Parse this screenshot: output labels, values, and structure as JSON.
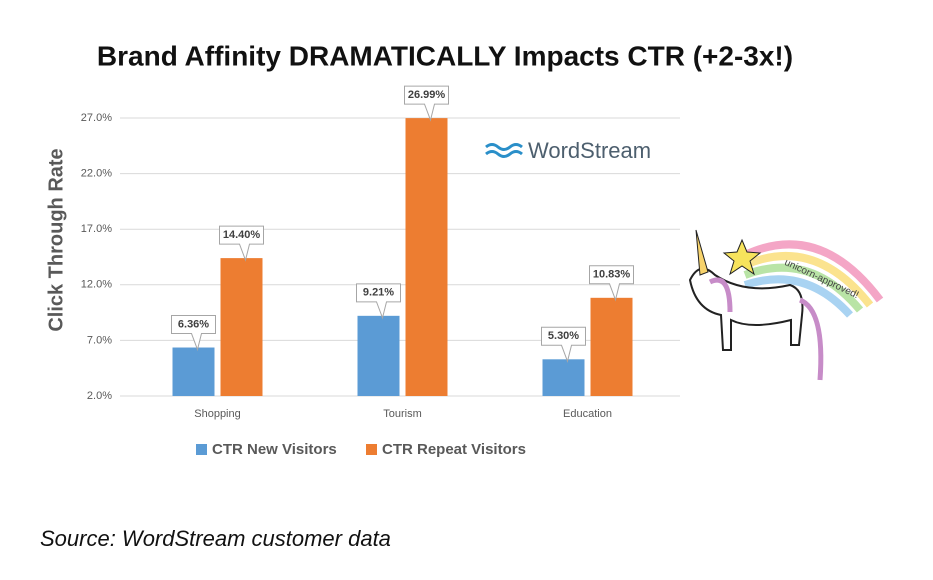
{
  "chart_data": {
    "type": "bar",
    "title": "Brand Affinity DRAMATICALLY Impacts CTR (+2-3x!)",
    "y_label": "Click Through Rate",
    "categories": [
      "Shopping",
      "Tourism",
      "Education"
    ],
    "series": [
      {
        "name": "CTR New Visitors",
        "color": "#5b9bd5",
        "values": [
          6.36,
          9.21,
          5.3
        ],
        "value_labels": [
          "6.36%",
          "9.21%",
          "5.30%"
        ]
      },
      {
        "name": "CTR Repeat Visitors",
        "color": "#ed7d31",
        "values": [
          14.4,
          26.99,
          10.83
        ],
        "value_labels": [
          "14.40%",
          "26.99%",
          "10.83%"
        ]
      }
    ],
    "ylim": [
      2,
      27
    ],
    "yticks": [
      {
        "value": 2,
        "label": "2.0%"
      },
      {
        "value": 7,
        "label": "7.0%"
      },
      {
        "value": 12,
        "label": "12.0%"
      },
      {
        "value": 17,
        "label": "17.0%"
      },
      {
        "value": 22,
        "label": "22.0%"
      },
      {
        "value": 27,
        "label": "27.0%"
      }
    ],
    "grid": true,
    "logo": "WordStream",
    "annotation": "unicorn-approved!",
    "source": "Source: WordStream customer data"
  }
}
